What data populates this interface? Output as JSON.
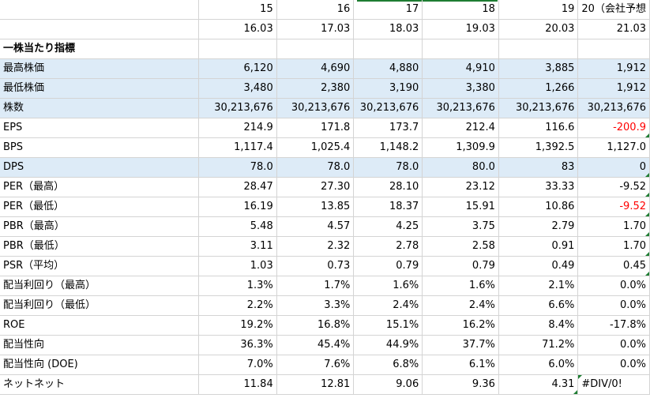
{
  "header": {
    "years": [
      "15",
      "16",
      "17",
      "18",
      "19",
      "20（会社予想"
    ],
    "periods": [
      "16.03",
      "17.03",
      "18.03",
      "19.03",
      "20.03",
      "21.03"
    ]
  },
  "section_title": "一株当たり指標",
  "rows": [
    {
      "label": "最高株価",
      "values": [
        "6,120",
        "4,690",
        "4,880",
        "4,910",
        "3,885",
        "1,912"
      ]
    },
    {
      "label": "最低株価",
      "values": [
        "3,480",
        "2,380",
        "3,190",
        "3,380",
        "1,266",
        "1,912"
      ]
    },
    {
      "label": "株数",
      "values": [
        "30,213,676",
        "30,213,676",
        "30,213,676",
        "30,213,676",
        "30,213,676",
        "30,213,676"
      ]
    },
    {
      "label": "EPS",
      "values": [
        "214.9",
        "171.8",
        "173.7",
        "212.4",
        "116.6",
        "-200.9"
      ]
    },
    {
      "label": "BPS",
      "values": [
        "1,117.4",
        "1,025.4",
        "1,148.2",
        "1,309.9",
        "1,392.5",
        "1,127.0"
      ]
    },
    {
      "label": "DPS",
      "values": [
        "78.0",
        "78.0",
        "78.0",
        "80.0",
        "83",
        "0"
      ]
    },
    {
      "label": "PER（最高）",
      "values": [
        "28.47",
        "27.30",
        "28.10",
        "23.12",
        "33.33",
        "-9.52"
      ]
    },
    {
      "label": "PER（最低）",
      "values": [
        "16.19",
        "13.85",
        "18.37",
        "15.91",
        "10.86",
        "-9.52"
      ]
    },
    {
      "label": "PBR（最高）",
      "values": [
        "5.48",
        "4.57",
        "4.25",
        "3.75",
        "2.79",
        "1.70"
      ]
    },
    {
      "label": "PBR（最低）",
      "values": [
        "3.11",
        "2.32",
        "2.78",
        "2.58",
        "0.91",
        "1.70"
      ]
    },
    {
      "label": "PSR（平均）",
      "values": [
        "1.03",
        "0.73",
        "0.79",
        "0.79",
        "0.49",
        "0.45"
      ]
    },
    {
      "label": "配当利回り（最高）",
      "values": [
        "1.3%",
        "1.7%",
        "1.6%",
        "1.6%",
        "2.1%",
        "0.0%"
      ]
    },
    {
      "label": "配当利回り（最低）",
      "values": [
        "2.2%",
        "3.3%",
        "2.4%",
        "2.4%",
        "6.6%",
        "0.0%"
      ]
    },
    {
      "label": "ROE",
      "values": [
        "19.2%",
        "16.8%",
        "15.1%",
        "16.2%",
        "8.4%",
        "-17.8%"
      ]
    },
    {
      "label": "配当性向",
      "values": [
        "36.3%",
        "45.4%",
        "44.9%",
        "37.7%",
        "71.2%",
        "0.0%"
      ]
    },
    {
      "label": "配当性向 (DOE)",
      "values": [
        "7.0%",
        "7.6%",
        "6.8%",
        "6.1%",
        "6.0%",
        "0.0%"
      ]
    },
    {
      "label": "ネットネット",
      "values": [
        "11.84",
        "12.81",
        "9.06",
        "9.36",
        "4.31",
        "#DIV/0!"
      ]
    }
  ],
  "colors": {
    "shade": "#ddebf7",
    "negative": "#ff0000",
    "gridline": "#d4d4d4",
    "error_flag": "#1e7d32"
  }
}
